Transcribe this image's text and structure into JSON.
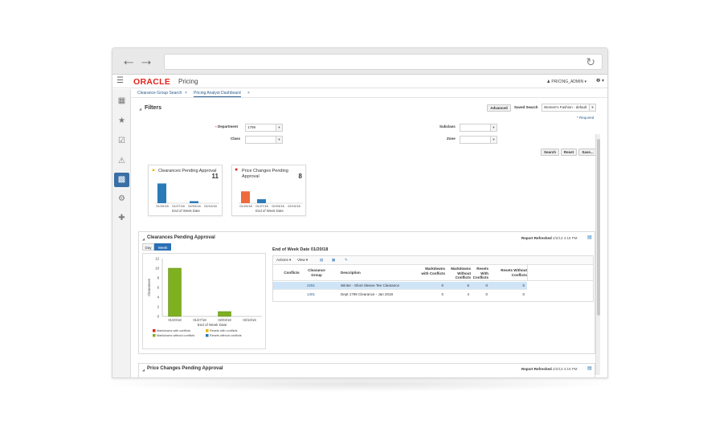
{
  "app": {
    "logo": "ORACLE",
    "product": "Pricing",
    "user": "PRICING_ADMIN ▾",
    "help": "❷ ▾"
  },
  "tabs": [
    {
      "label": "Clearance Group Search",
      "close": "×"
    },
    {
      "label": "Pricing Analyst Dashboard",
      "close": "×"
    }
  ],
  "filters": {
    "title": "Filters",
    "advanced": "Advanced",
    "saved_search_label": "Saved Search",
    "saved_search_value": "Women's Fashion - default",
    "required": "* Required",
    "department_label": "Department",
    "department_value": "1799",
    "class_label": "Class",
    "class_value": "",
    "subclass_label": "Subclass",
    "subclass_value": "",
    "zone_label": "Zone",
    "zone_value": "",
    "search_btn": "Search",
    "reset_btn": "Reset",
    "save_btn": "Save..."
  },
  "cards": [
    {
      "title": "Clearances Pending Approval",
      "count": "11",
      "xlabel": "End of Week Date",
      "status_color": "#f2b200",
      "bar_color": "#2a7ab8",
      "chart_data": {
        "type": "bar",
        "categories": [
          "01/20/18",
          "01/27/18",
          "02/03/18",
          "02/10/18"
        ],
        "values": [
          10,
          0,
          1,
          0
        ],
        "xlabel": "End of Week Date"
      }
    },
    {
      "title": "Price Changes Pending Approval",
      "count": "8",
      "xlabel": "End of Week Date",
      "status_color": "#d62b1f",
      "chart_data": {
        "type": "bar",
        "categories": [
          "01/20/18",
          "01/27/18",
          "02/03/18",
          "02/10/18"
        ],
        "series": [
          {
            "values": [
              6,
              0,
              0,
              0
            ],
            "color": "#ef6a3c"
          },
          {
            "values": [
              0,
              2,
              0,
              0
            ],
            "color": "#2a7ab8"
          }
        ],
        "xlabel": "End of Week Date"
      }
    }
  ],
  "clearances_panel": {
    "title": "Clearances Pending Approval",
    "report_refreshed_label": "Report Refreshed",
    "report_refreshed_value": "2/2/13 4:18 PM",
    "day_label": "Day",
    "week_label": "Week",
    "end_of_week_title": "End of Week Date 01/20/18",
    "chart_data": {
      "type": "bar",
      "categories": [
        "01/20/18",
        "01/27/18",
        "02/03/18",
        "02/10/18"
      ],
      "series": [
        {
          "name": "Markdowns with conflicts",
          "values": [
            0,
            0,
            0,
            0
          ],
          "color": "#d62b1f"
        },
        {
          "name": "Resets with conflicts",
          "values": [
            0,
            0,
            0,
            0
          ],
          "color": "#f2b200"
        },
        {
          "name": "Markdowns without conflicts",
          "values": [
            10,
            0,
            1,
            0
          ],
          "color": "#7fb020"
        },
        {
          "name": "Resets without conflicts",
          "values": [
            0,
            0,
            0,
            0
          ],
          "color": "#2a7ab8"
        }
      ],
      "ylabel": "Clearances",
      "xlabel": "End of Week Date",
      "yticks": [
        "0",
        "2",
        "4",
        "6",
        "8",
        "10",
        "12"
      ],
      "ylim": [
        0,
        12
      ],
      "legend": [
        "Markdowns with conflicts",
        "Resets with conflicts",
        "Markdowns without conflicts",
        "Resets without conflicts"
      ]
    },
    "table": {
      "actions": "Actions ▾",
      "view": "View ▾",
      "columns": [
        "Conflicts",
        "Clearance Group",
        "Description",
        "Markdowns with Conflicts",
        "Markdowns Without Conflicts",
        "Resets With Conflicts",
        "Resets Without Conflicts"
      ],
      "rows": [
        {
          "conflicts": "",
          "group": "2291",
          "description": "Winter - Short Sleeve Tee Clearance",
          "md_with": "0",
          "md_without": "6",
          "rs_with": "0",
          "rs_without": "0"
        },
        {
          "conflicts": "",
          "group": "1401",
          "description": "Dept 1799 Clearance - Jan 2018",
          "md_with": "0",
          "md_without": "4",
          "rs_with": "0",
          "rs_without": "0"
        }
      ]
    }
  },
  "price_changes_panel": {
    "title": "Price Changes Pending Approval",
    "report_refreshed_label": "Report Refreshed",
    "report_refreshed_value": "2/2/13 4:18 PM"
  }
}
